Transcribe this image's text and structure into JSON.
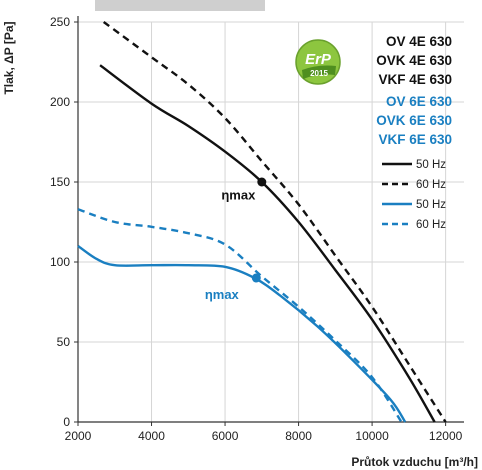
{
  "chart_data": {
    "type": "line",
    "title": "",
    "xlabel": "Průtok vzduchu [m³/h]",
    "ylabel": "Tlak, ΔP [Pa]",
    "xlim": [
      2000,
      12500
    ],
    "ylim": [
      0,
      250
    ],
    "xticks": [
      "2000",
      "4000",
      "6000",
      "8000",
      "10000",
      "12000"
    ],
    "yticks": [
      "0",
      "50",
      "100",
      "150",
      "200",
      "250"
    ],
    "grid": true,
    "models_4E": [
      "OV 4E 630",
      "OVK 4E 630",
      "VKF 4E 630"
    ],
    "models_6E": [
      "OV 6E 630",
      "OVK 6E 630",
      "VKF 6E 630"
    ],
    "legend": [
      {
        "label": "50 Hz",
        "color": "#111111",
        "dashed": false
      },
      {
        "label": "60 Hz",
        "color": "#111111",
        "dashed": true
      },
      {
        "label": "50 Hz",
        "color": "#1a7fc1",
        "dashed": false
      },
      {
        "label": "60 Hz",
        "color": "#1a7fc1",
        "dashed": true
      }
    ],
    "badge": {
      "line1": "ErP",
      "line2": "2015"
    },
    "eta_label": "ηmax",
    "series": [
      {
        "group": "4E",
        "freq": "50 Hz",
        "color": "#111111",
        "dashed": false,
        "points": [
          [
            2600,
            223
          ],
          [
            4000,
            199
          ],
          [
            5000,
            185
          ],
          [
            6000,
            169
          ],
          [
            7000,
            150
          ],
          [
            8000,
            125
          ],
          [
            9000,
            95
          ],
          [
            10000,
            64
          ],
          [
            11000,
            28
          ],
          [
            11700,
            0
          ]
        ]
      },
      {
        "group": "4E",
        "freq": "60 Hz",
        "color": "#111111",
        "dashed": true,
        "points": [
          [
            2700,
            250
          ],
          [
            4000,
            228
          ],
          [
            5000,
            211
          ],
          [
            6000,
            190
          ],
          [
            7000,
            163
          ],
          [
            8000,
            136
          ],
          [
            9000,
            104
          ],
          [
            10000,
            72
          ],
          [
            11000,
            36
          ],
          [
            12000,
            0
          ]
        ]
      },
      {
        "group": "6E",
        "freq": "50 Hz",
        "color": "#1a7fc1",
        "dashed": false,
        "points": [
          [
            2000,
            110
          ],
          [
            2500,
            102
          ],
          [
            3000,
            98
          ],
          [
            4000,
            98
          ],
          [
            5000,
            98
          ],
          [
            6000,
            97
          ],
          [
            6800,
            90
          ],
          [
            7500,
            79
          ],
          [
            8500,
            60
          ],
          [
            9500,
            38
          ],
          [
            10500,
            14
          ],
          [
            10900,
            0
          ]
        ]
      },
      {
        "group": "6E",
        "freq": "60 Hz",
        "color": "#1a7fc1",
        "dashed": true,
        "points": [
          [
            2000,
            133
          ],
          [
            3000,
            125
          ],
          [
            4000,
            122
          ],
          [
            5000,
            118
          ],
          [
            6000,
            111
          ],
          [
            7000,
            91
          ],
          [
            8000,
            72
          ],
          [
            9000,
            51
          ],
          [
            10000,
            28
          ],
          [
            10800,
            0
          ]
        ]
      }
    ],
    "eta_points": [
      {
        "group": "4E",
        "x": 7000,
        "y": 150,
        "label_x": 5900,
        "label_y": 139
      },
      {
        "group": "6E",
        "x": 6850,
        "y": 90,
        "label_x": 5450,
        "label_y": 77
      }
    ]
  }
}
